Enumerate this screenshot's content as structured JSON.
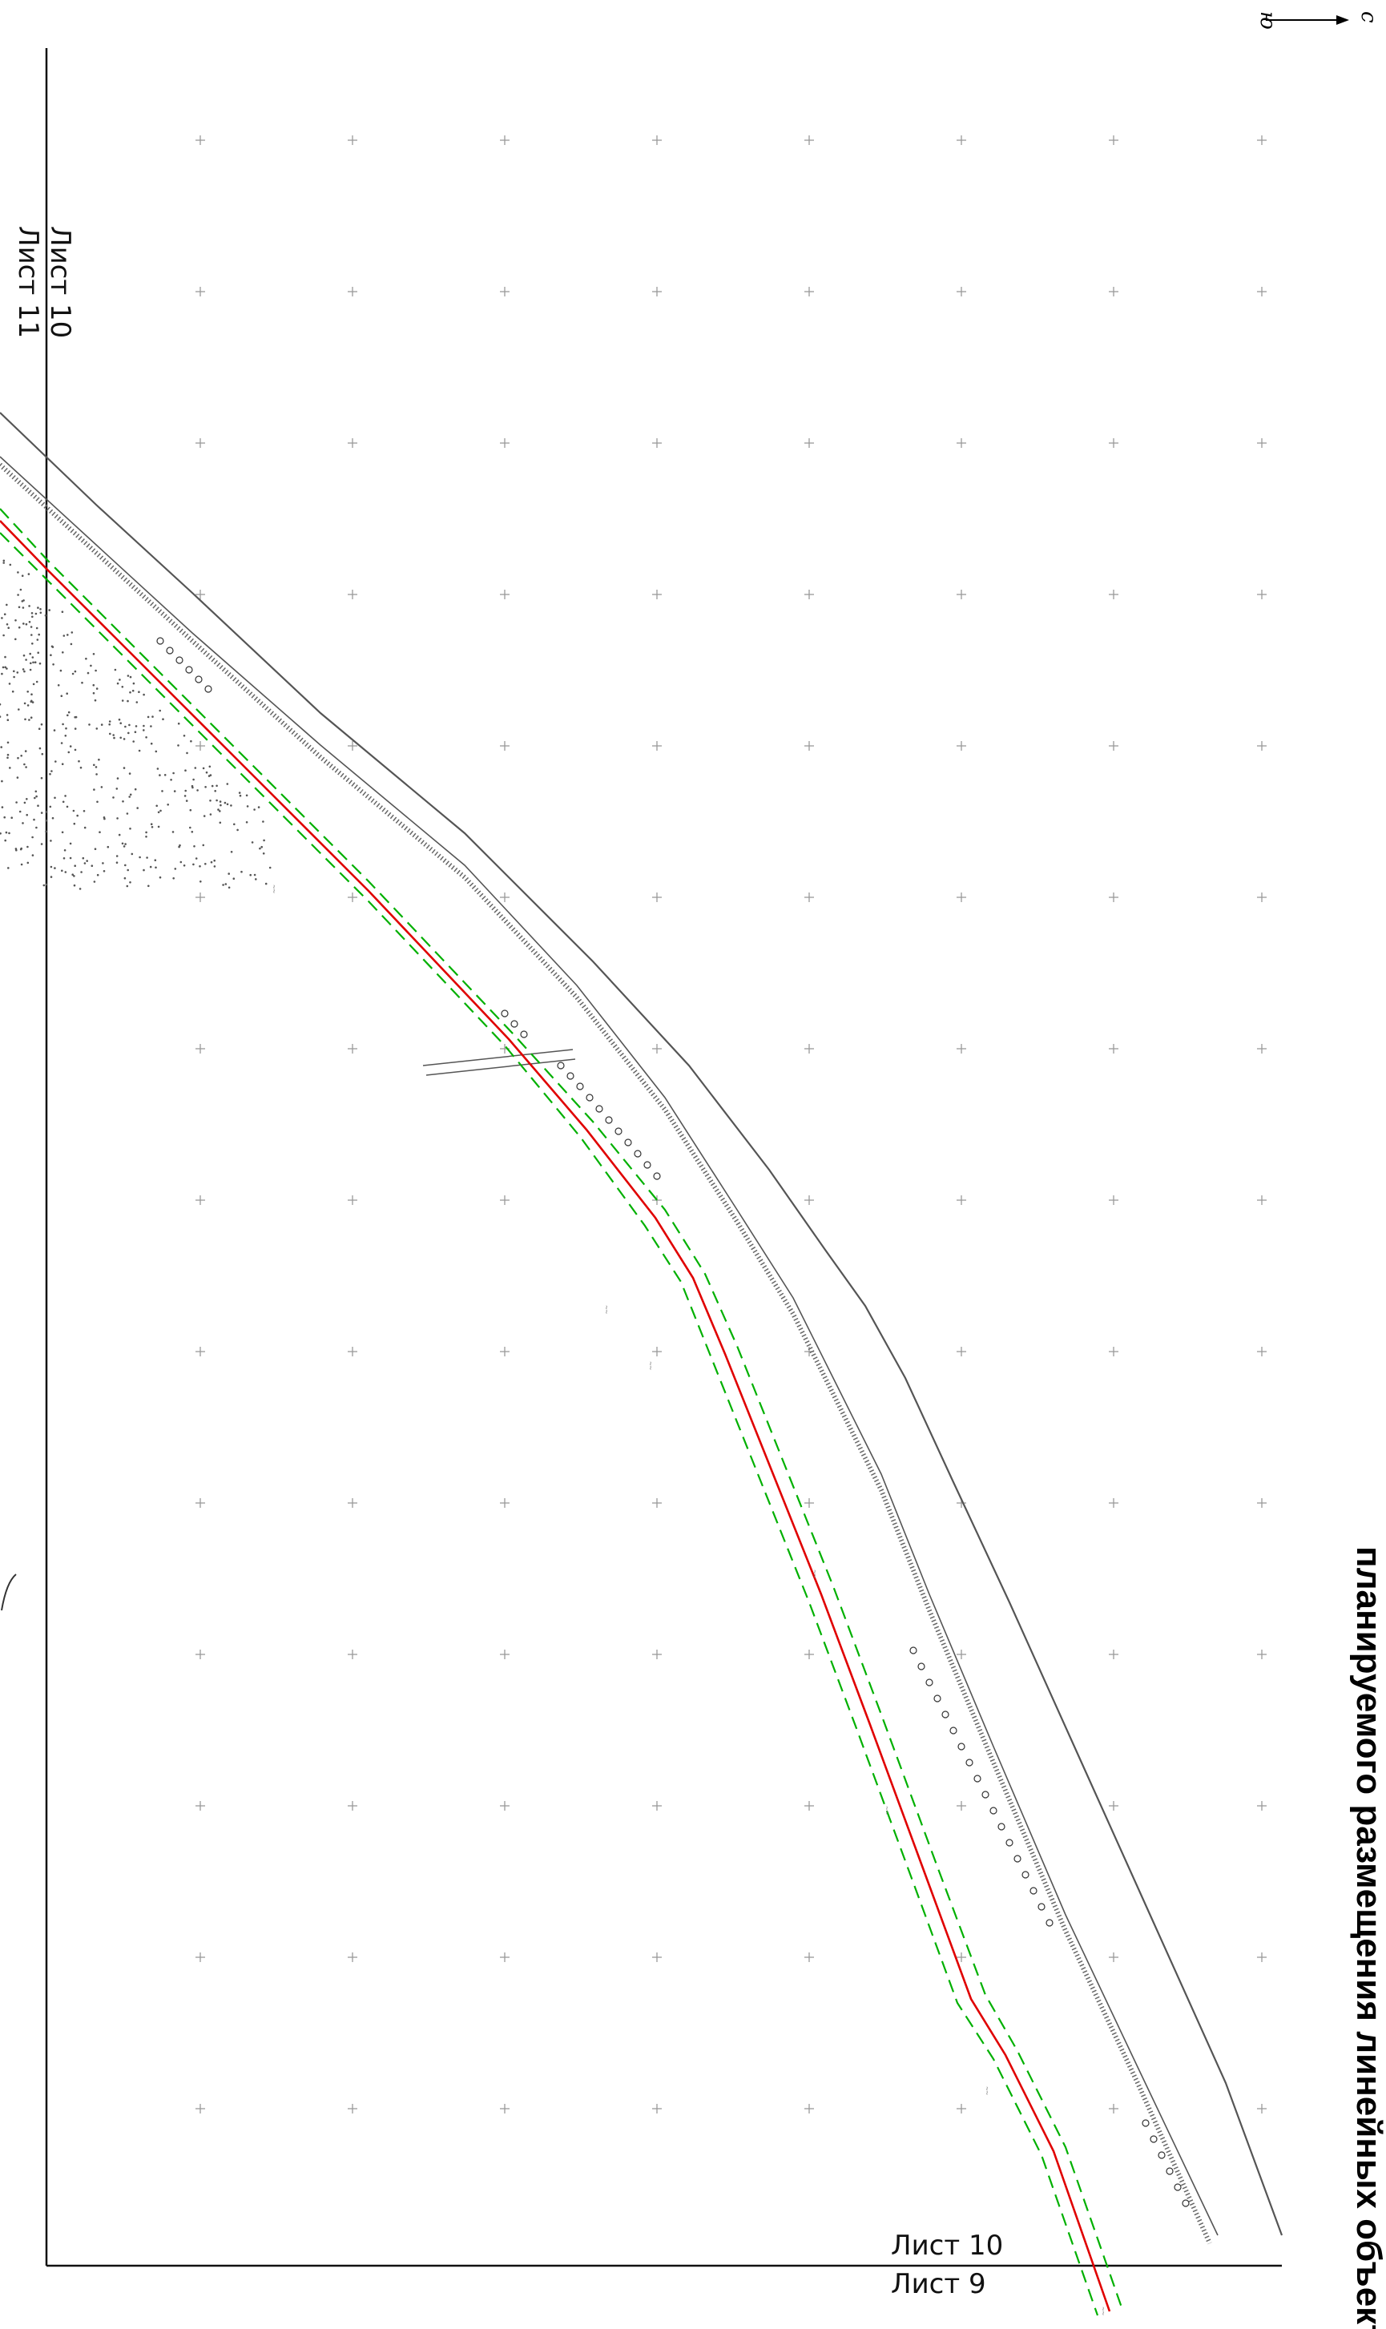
{
  "title": "планируемого размещения линейных объекто",
  "compass": {
    "north": "с",
    "south": "ю"
  },
  "sheets": {
    "top_left_upper": "Лист 10",
    "top_left_lower": "Лист 11",
    "bottom_upper": "Лист 10",
    "bottom_lower": "Лист 9"
  },
  "colors": {
    "design_line": "#e00000",
    "zone_line": "#00b000",
    "road_line": "#555555",
    "grid_cross": "#999999",
    "background": "#ffffff"
  },
  "layers": [
    "coordinate-grid",
    "existing-road",
    "planned-linear-object",
    "right-of-way-boundary",
    "vegetation-area"
  ]
}
